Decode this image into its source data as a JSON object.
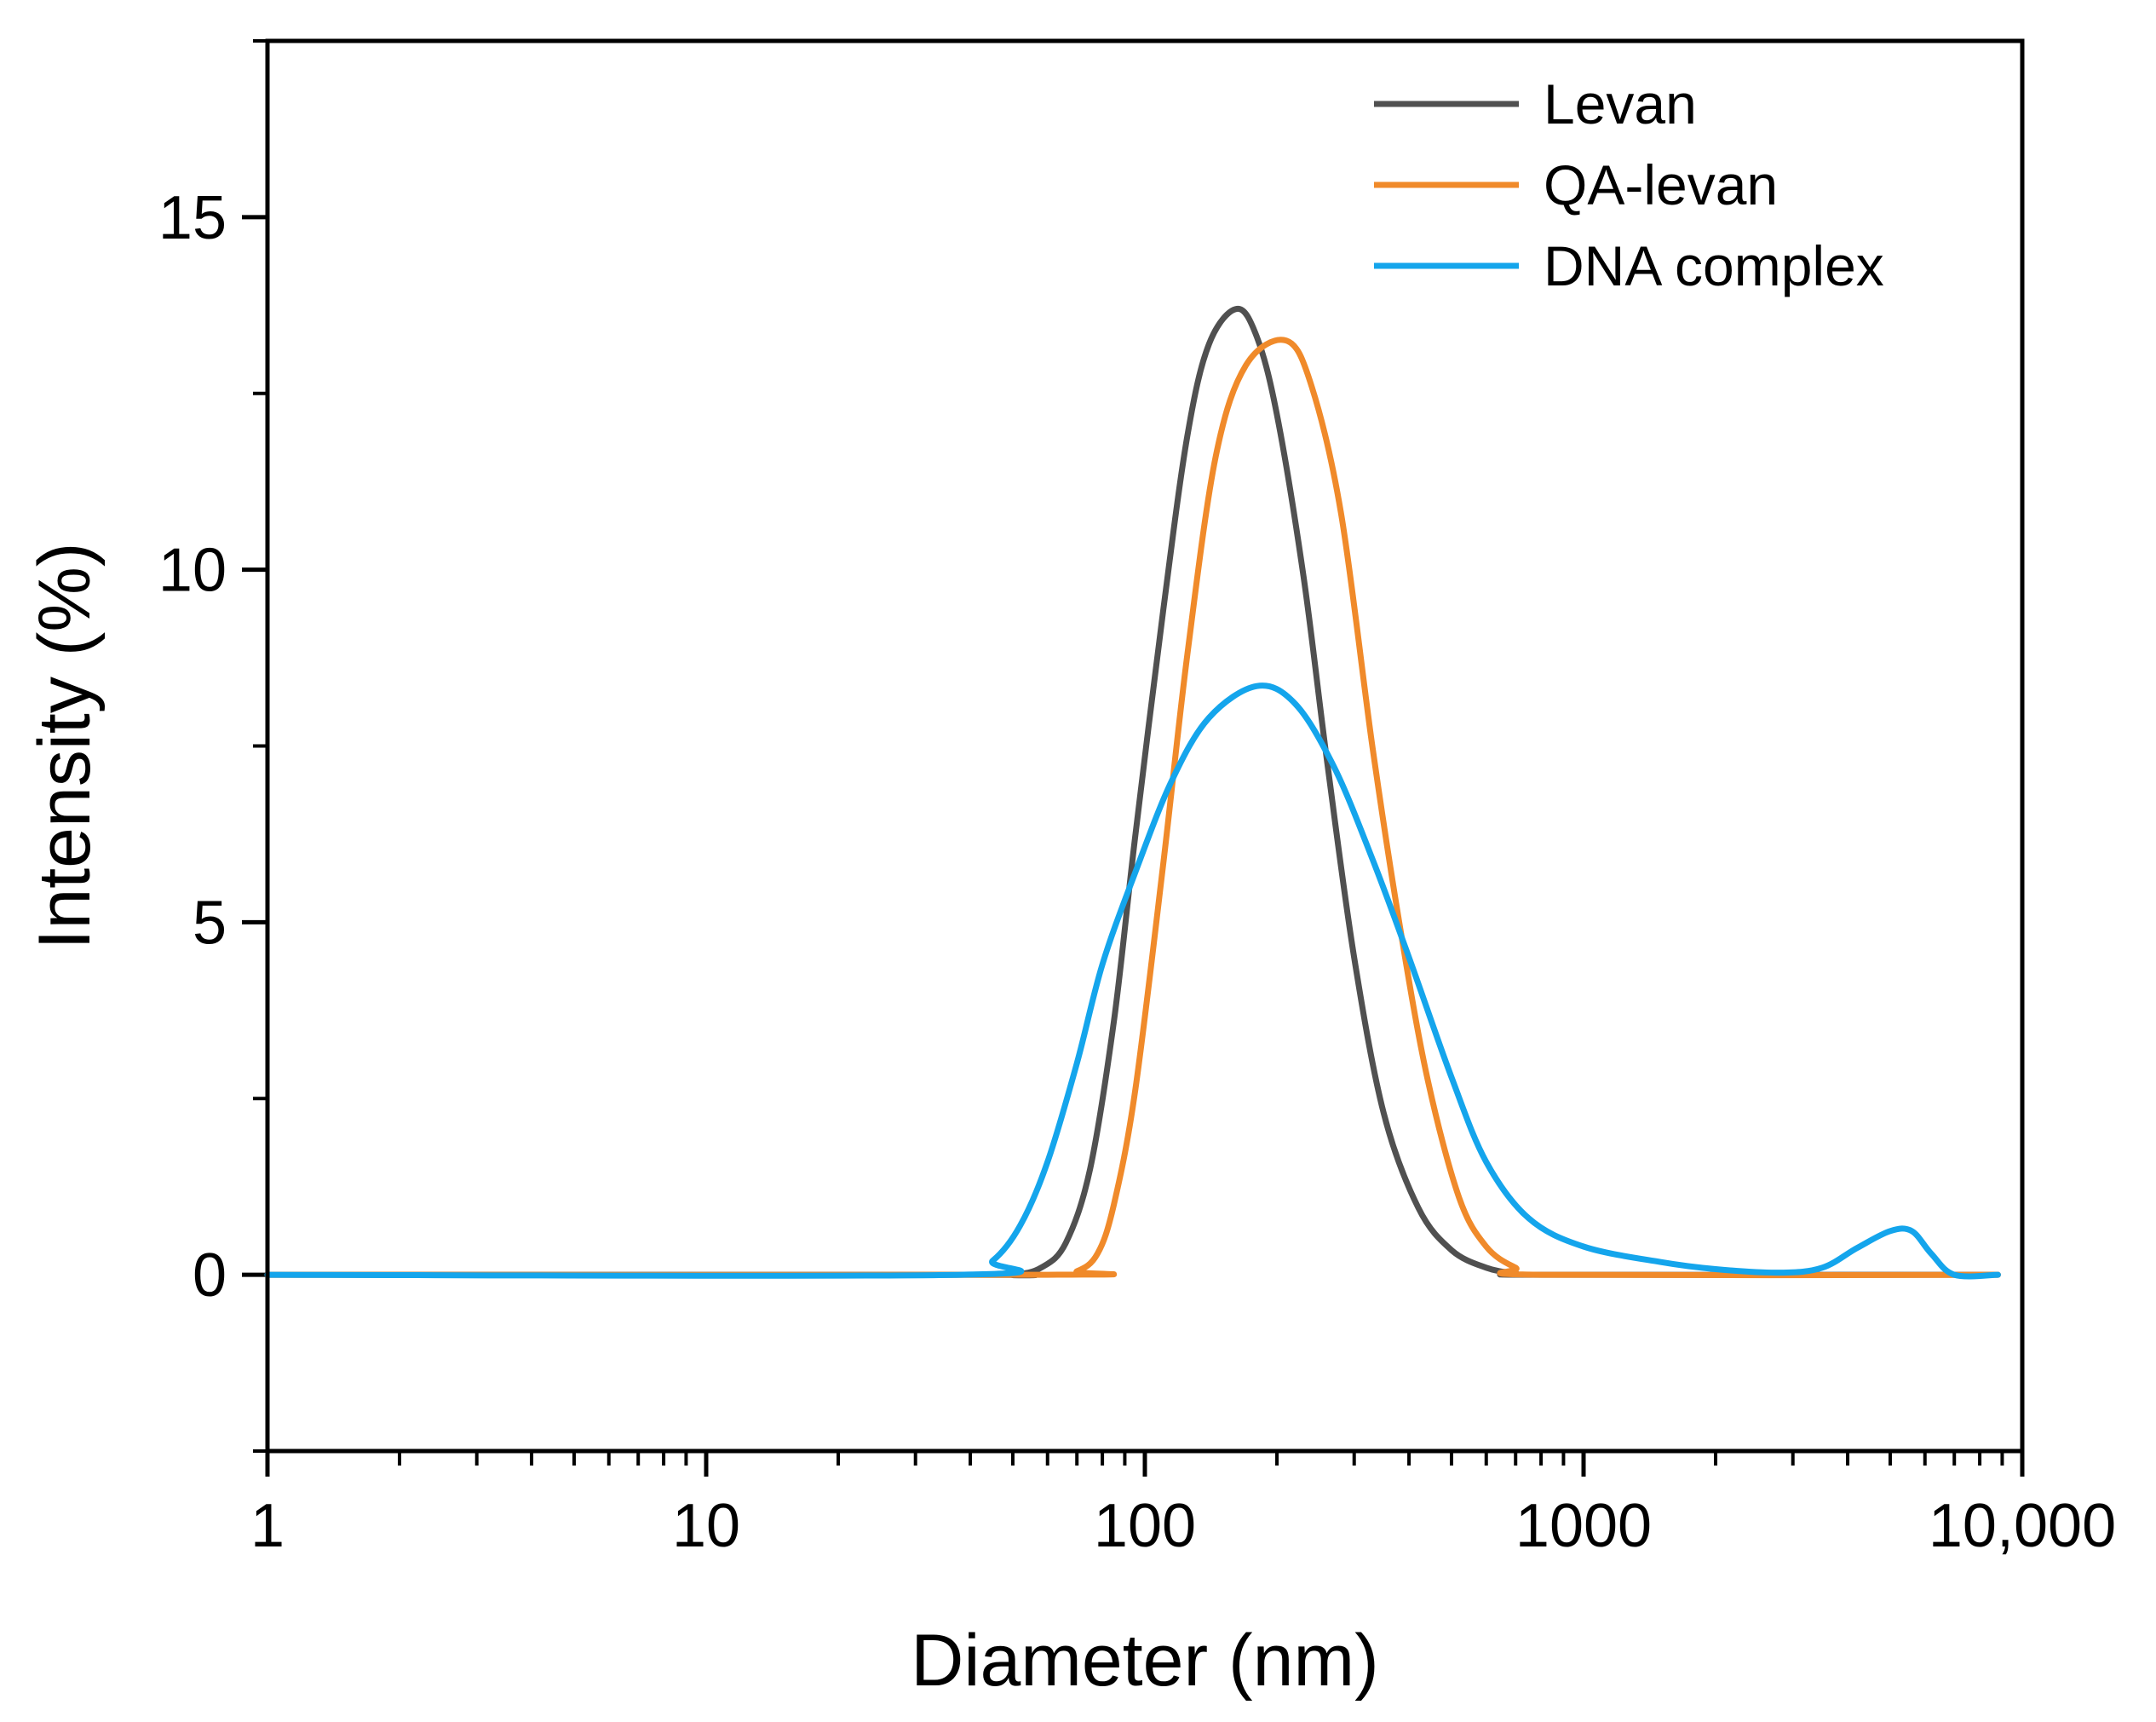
{
  "chart_data": {
    "type": "line",
    "xscale": "log",
    "xlabel": "Diameter (nm)",
    "ylabel": "Intensity (%)",
    "xlim": [
      1,
      10000
    ],
    "ylim": [
      -2.5,
      17.5
    ],
    "xticks": [
      1,
      10,
      100,
      1000,
      10000
    ],
    "xtick_labels": [
      "1",
      "10",
      "100",
      "1000",
      "10,000"
    ],
    "yticks": [
      0,
      5,
      10,
      15
    ],
    "ytick_labels": [
      "0",
      "5",
      "10",
      "15"
    ],
    "grid": false,
    "legend_position": "top-right",
    "series": [
      {
        "name": "Levan",
        "color": "#505050",
        "points": [
          [
            1,
            0
          ],
          [
            40,
            0
          ],
          [
            50,
            0
          ],
          [
            58,
            0.1
          ],
          [
            66,
            0.45
          ],
          [
            75,
            1.5
          ],
          [
            85,
            3.6
          ],
          [
            95,
            6.2
          ],
          [
            110,
            9.4
          ],
          [
            125,
            11.9
          ],
          [
            140,
            13.2
          ],
          [
            162,
            13.7
          ],
          [
            180,
            13.3
          ],
          [
            200,
            12.2
          ],
          [
            230,
            9.9
          ],
          [
            260,
            7.3
          ],
          [
            300,
            4.5
          ],
          [
            350,
            2.3
          ],
          [
            420,
            0.95
          ],
          [
            500,
            0.35
          ],
          [
            600,
            0.1
          ],
          [
            700,
            0.02
          ],
          [
            800,
            0
          ],
          [
            8800,
            0
          ]
        ]
      },
      {
        "name": "QA-levan",
        "color": "#F08A2A",
        "points": [
          [
            1,
            0
          ],
          [
            60,
            0
          ],
          [
            70,
            0.05
          ],
          [
            78,
            0.3
          ],
          [
            85,
            1.0
          ],
          [
            95,
            2.6
          ],
          [
            110,
            5.8
          ],
          [
            125,
            8.8
          ],
          [
            145,
            11.6
          ],
          [
            170,
            12.9
          ],
          [
            210,
            13.25
          ],
          [
            240,
            12.6
          ],
          [
            280,
            10.8
          ],
          [
            330,
            7.5
          ],
          [
            380,
            5.0
          ],
          [
            440,
            2.8
          ],
          [
            520,
            1.1
          ],
          [
            600,
            0.4
          ],
          [
            700,
            0.1
          ],
          [
            800,
            0
          ],
          [
            8800,
            0
          ]
        ]
      },
      {
        "name": "DNA complex",
        "color": "#14A5EC",
        "points": [
          [
            1,
            0
          ],
          [
            38,
            0
          ],
          [
            45,
            0.2
          ],
          [
            52,
            0.7
          ],
          [
            60,
            1.6
          ],
          [
            70,
            3.0
          ],
          [
            80,
            4.4
          ],
          [
            95,
            5.7
          ],
          [
            115,
            7.0
          ],
          [
            140,
            7.9
          ],
          [
            180,
            8.35
          ],
          [
            220,
            8.1
          ],
          [
            270,
            7.2
          ],
          [
            330,
            5.9
          ],
          [
            400,
            4.5
          ],
          [
            500,
            2.8
          ],
          [
            600,
            1.6
          ],
          [
            750,
            0.8
          ],
          [
            1000,
            0.4
          ],
          [
            1500,
            0.18
          ],
          [
            2000,
            0.08
          ],
          [
            2800,
            0.03
          ],
          [
            3500,
            0.1
          ],
          [
            4200,
            0.38
          ],
          [
            5000,
            0.62
          ],
          [
            5600,
            0.62
          ],
          [
            6200,
            0.3
          ],
          [
            7000,
            0
          ],
          [
            8800,
            0
          ]
        ]
      }
    ]
  }
}
